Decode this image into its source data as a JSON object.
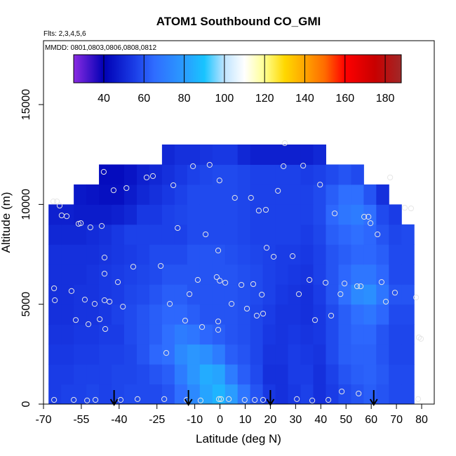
{
  "chart_data": {
    "type": "heatmap",
    "title": "ATOM1 Southbound CO_GMI",
    "subtitle": "Flts: 2,3,4,5,6",
    "annotation": "MMDD: 0801,0803,0806,0808,0812",
    "x_label": "Latitude (deg N)",
    "y_label": "Altitude (m)",
    "xlim": [
      -70,
      85
    ],
    "ylim": [
      0,
      18200
    ],
    "xticks": [
      -70,
      -55,
      -40,
      -25,
      -10,
      0,
      10,
      20,
      30,
      40,
      50,
      60,
      70,
      80
    ],
    "yticks": [
      0,
      5000,
      10000,
      15000
    ],
    "cell_width": 5,
    "cell_height": 1000,
    "x": [
      -65.5,
      -60.5,
      -55.5,
      -50.5,
      -45.5,
      -40.5,
      -35.5,
      -30.5,
      -25.5,
      -20.5,
      -15.5,
      -10.5,
      -5.5,
      -0.5,
      4.5,
      9.5,
      14.5,
      19.5,
      24.5,
      29.5,
      34.5,
      39.5,
      44.5,
      49.5,
      54.5,
      59.5,
      64.5,
      69.5,
      74.5
    ],
    "y": [
      500,
      1500,
      2500,
      3500,
      4500,
      5500,
      6500,
      7500,
      8500,
      9500,
      10500,
      11500,
      12500
    ],
    "z": [
      [
        55,
        56,
        56,
        57,
        56,
        57,
        58,
        58,
        58,
        60,
        66,
        74,
        82,
        86,
        80,
        68,
        60,
        54,
        52,
        54,
        56,
        52,
        55,
        58,
        60,
        62,
        60,
        58,
        58
      ],
      [
        55,
        55,
        56,
        56,
        56,
        57,
        57,
        58,
        60,
        62,
        70,
        78,
        84,
        82,
        70,
        62,
        58,
        52,
        52,
        55,
        55,
        52,
        56,
        60,
        62,
        63,
        61,
        58,
        58
      ],
      [
        54,
        54,
        55,
        55,
        56,
        56,
        57,
        60,
        64,
        66,
        74,
        78,
        76,
        70,
        62,
        60,
        57,
        53,
        53,
        55,
        54,
        53,
        58,
        62,
        63,
        63,
        60,
        57,
        57
      ],
      [
        53,
        53,
        54,
        54,
        55,
        55,
        58,
        60,
        62,
        66,
        70,
        68,
        64,
        62,
        60,
        59,
        57,
        54,
        53,
        54,
        53,
        54,
        58,
        62,
        64,
        64,
        60,
        57,
        57
      ],
      [
        52,
        52,
        53,
        53,
        54,
        56,
        58,
        60,
        62,
        64,
        64,
        62,
        60,
        60,
        60,
        59,
        57,
        55,
        53,
        53,
        52,
        54,
        58,
        62,
        66,
        68,
        64,
        58,
        58
      ],
      [
        52,
        52,
        53,
        53,
        54,
        55,
        57,
        58,
        60,
        62,
        62,
        60,
        60,
        60,
        60,
        59,
        58,
        56,
        54,
        53,
        52,
        55,
        60,
        66,
        74,
        76,
        68,
        60,
        60
      ],
      [
        52,
        52,
        52,
        53,
        54,
        55,
        56,
        57,
        58,
        60,
        60,
        60,
        60,
        60,
        60,
        59,
        58,
        56,
        55,
        54,
        53,
        56,
        60,
        64,
        68,
        68,
        64,
        58,
        58
      ],
      [
        52,
        52,
        52,
        52,
        53,
        54,
        55,
        56,
        58,
        58,
        58,
        60,
        60,
        60,
        59,
        58,
        57,
        56,
        55,
        55,
        54,
        56,
        60,
        62,
        64,
        64,
        62,
        58,
        58
      ],
      [
        50,
        50,
        50,
        51,
        52,
        54,
        56,
        56,
        56,
        56,
        56,
        58,
        58,
        58,
        58,
        57,
        56,
        56,
        56,
        56,
        55,
        57,
        62,
        64,
        66,
        64,
        60,
        57,
        58
      ],
      [
        48,
        48,
        47,
        47,
        47,
        48,
        50,
        54,
        54,
        56,
        57,
        58,
        58,
        58,
        58,
        57,
        56,
        56,
        56,
        56,
        56,
        58,
        64,
        68,
        70,
        66,
        58,
        55,
        null
      ],
      [
        null,
        null,
        46,
        45,
        44,
        44,
        47,
        50,
        52,
        54,
        56,
        58,
        58,
        58,
        58,
        57,
        56,
        56,
        56,
        56,
        56,
        58,
        62,
        66,
        66,
        60,
        52,
        null,
        null
      ],
      [
        null,
        null,
        null,
        null,
        43,
        43,
        45,
        48,
        50,
        52,
        54,
        56,
        57,
        58,
        58,
        57,
        56,
        56,
        56,
        56,
        55,
        56,
        58,
        60,
        58,
        null,
        null,
        null,
        null
      ],
      [
        null,
        null,
        null,
        null,
        null,
        null,
        null,
        null,
        null,
        50,
        52,
        52,
        53,
        54,
        54,
        50,
        48,
        48,
        48,
        48,
        48,
        50,
        null,
        null,
        null,
        null,
        null,
        null,
        null
      ]
    ],
    "colorbar_lim": [
      25,
      188
    ],
    "colorbar_ticks": [
      40,
      60,
      80,
      100,
      120,
      140,
      160,
      180
    ],
    "colorscale": [
      [
        25,
        "#8a2be2"
      ],
      [
        40,
        "#0000b4"
      ],
      [
        55,
        "#1a3ce6"
      ],
      [
        65,
        "#2f6cff"
      ],
      [
        80,
        "#2a9cff"
      ],
      [
        90,
        "#18c4ff"
      ],
      [
        100,
        "#bfe4ff"
      ],
      [
        110,
        "#ffffff"
      ],
      [
        120,
        "#ffff90"
      ],
      [
        130,
        "#ffd800"
      ],
      [
        140,
        "#ffa500"
      ],
      [
        150,
        "#ff6a00"
      ],
      [
        160,
        "#ff0000"
      ],
      [
        175,
        "#c80000"
      ],
      [
        188,
        "#a02828"
      ]
    ],
    "obs_lat": [
      -65.8,
      -65.5,
      -66.1,
      -64.7,
      -63.6,
      -62.8,
      -60.8,
      -56.1,
      -55.2,
      -51.4,
      -46.9,
      -46.1,
      -42.2,
      -37.1,
      -29.1,
      -26.6,
      -18.5,
      -10.7,
      -4.1,
      -0.2,
      25.2,
      33.0,
      39.7,
      23.0,
      5.9,
      12.3,
      15.4,
      18.2,
      45.5,
      57.2,
      58.9,
      59.7,
      62.5,
      73.3,
      75.8,
      67.5,
      -0.7,
      -5.7,
      -16.8,
      18.5,
      21.3,
      28.8,
      -45.8,
      -45.8,
      -34.4,
      -23.5,
      -40.5,
      -58.9,
      -53.6,
      -49.7,
      -45.8,
      -43.8,
      -38.5,
      -19.9,
      -12.1,
      -8.8,
      -1.3,
      -0.1,
      2.1,
      8.5,
      13.2,
      16.6,
      4.6,
      10.7,
      14.6,
      17.1,
      35.5,
      41.9,
      49.4,
      54.4,
      55.8,
      64.1,
      69.4,
      65.8,
      47.8,
      31.3,
      44.1,
      37.7,
      77.8,
      -0.7,
      -0.7,
      -7.1,
      -13.8,
      -45.5,
      -52.2,
      -57.2,
      -47.7,
      78.9,
      79.7,
      -21.3,
      -65.8,
      -58.0,
      -52.7,
      -49.4,
      -39.4,
      -32.7,
      -22.1,
      -13.2,
      -7.7,
      -0.4,
      0.4,
      3.5,
      9.8,
      13.8,
      17.1,
      30.5,
      36.6,
      43.0,
      48.3,
      55.0,
      78.6,
      25.7
    ],
    "obs_alt": [
      5800,
      5200,
      10150,
      10150,
      9940,
      9450,
      9410,
      9030,
      9060,
      8850,
      8920,
      11630,
      10710,
      10820,
      11350,
      11420,
      10960,
      11910,
      11980,
      11200,
      11910,
      11940,
      10990,
      10680,
      10330,
      10330,
      9690,
      9730,
      9550,
      9380,
      9380,
      9060,
      8500,
      9830,
      9800,
      11350,
      7690,
      8500,
      8820,
      7830,
      7380,
      7410,
      7340,
      6530,
      6880,
      6920,
      6110,
      5660,
      5230,
      5020,
      5200,
      5130,
      4880,
      5020,
      5510,
      6220,
      6360,
      6180,
      6080,
      5970,
      6010,
      5480,
      5020,
      4780,
      4430,
      4530,
      6220,
      6080,
      6040,
      5900,
      5900,
      6110,
      5580,
      5130,
      5510,
      5510,
      4430,
      4210,
      5340,
      4140,
      3720,
      3860,
      4180,
      3760,
      4000,
      4210,
      4250,
      3340,
      3270,
      2560,
      210,
      210,
      180,
      210,
      210,
      250,
      250,
      210,
      180,
      250,
      250,
      250,
      210,
      210,
      210,
      250,
      180,
      210,
      630,
      530,
      250,
      13070
    ],
    "arrow_lat": [
      -42,
      -12.5,
      20,
      61
    ]
  }
}
